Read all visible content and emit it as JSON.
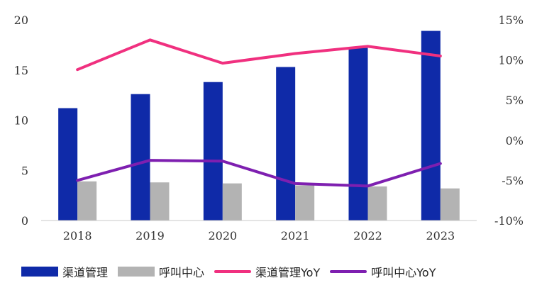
{
  "chart_data": {
    "type": "bar",
    "categories": [
      "2018",
      "2019",
      "2020",
      "2021",
      "2022",
      "2023"
    ],
    "series": [
      {
        "name": "渠道管理",
        "kind": "bar",
        "axis": "left",
        "color": "#0f2aa8",
        "values": [
          11.2,
          12.6,
          13.8,
          15.3,
          17.2,
          18.9
        ]
      },
      {
        "name": "呼叫中心",
        "kind": "bar",
        "axis": "left",
        "color": "#b3b3b3",
        "values": [
          3.9,
          3.8,
          3.7,
          3.5,
          3.4,
          3.2
        ]
      },
      {
        "name": "渠道管理YoY",
        "kind": "line",
        "axis": "right",
        "color": "#f0307f",
        "values": [
          8.8,
          12.5,
          9.6,
          10.8,
          11.7,
          10.5
        ]
      },
      {
        "name": "呼叫中心YoY",
        "kind": "line",
        "axis": "right",
        "color": "#7e1fb0",
        "values": [
          -5.0,
          -2.5,
          -2.6,
          -5.4,
          -5.7,
          -2.9
        ]
      }
    ],
    "ylim": [
      0,
      20
    ],
    "yticks": [
      "0",
      "5",
      "10",
      "15",
      "20"
    ],
    "y2lim": [
      -10,
      15
    ],
    "y2ticks": [
      "-10%",
      "-5%",
      "0%",
      "5%",
      "10%",
      "15%"
    ],
    "legend_position": "bottom",
    "grid": false
  }
}
